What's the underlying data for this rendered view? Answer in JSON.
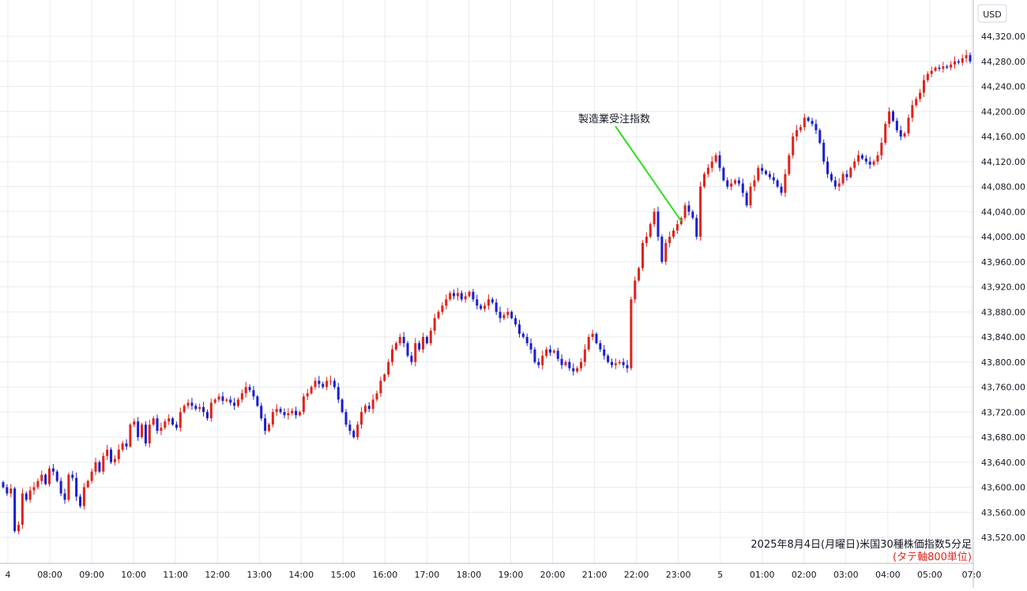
{
  "chart_data": {
    "type": "candlestick",
    "currency": "USD",
    "caption": "2025年8月4日(月曜日)米国30種株価指数5分足",
    "subcaption": "(タテ軸800単位)",
    "ylim": [
      43500,
      44340
    ],
    "y_ticks": [
      "44,320.00",
      "44,280.00",
      "44,240.00",
      "44,200.00",
      "44,160.00",
      "44,120.00",
      "44,080.00",
      "44,040.00",
      "44,000.00",
      "43,960.00",
      "43,920.00",
      "43,880.00",
      "43,840.00",
      "43,800.00",
      "43,760.00",
      "43,720.00",
      "43,680.00",
      "43,640.00",
      "43,600.00",
      "43,560.00",
      "43,520.00"
    ],
    "y_tick_values": [
      44320,
      44280,
      44240,
      44200,
      44160,
      44120,
      44080,
      44040,
      44000,
      43960,
      43920,
      43880,
      43840,
      43800,
      43760,
      43720,
      43680,
      43640,
      43600,
      43560,
      43520
    ],
    "x_tick_labels": [
      "4",
      "08:00",
      "09:00",
      "10:00",
      "11:00",
      "12:00",
      "13:00",
      "14:00",
      "15:00",
      "16:00",
      "17:00",
      "18:00",
      "19:00",
      "20:00",
      "21:00",
      "22:00",
      "23:00",
      "5",
      "01:00",
      "02:00",
      "03:00",
      "04:00",
      "05:00",
      "07:0"
    ],
    "annotation": {
      "text": "製造業受注指数",
      "at_time_index": 176,
      "at_price": 44025
    },
    "colors": {
      "up": "#e0241b",
      "down": "#1a1fd1",
      "annotation_line": "#33dd22",
      "grid": "#e8ebf0"
    },
    "closes": [
      43600,
      43590,
      43598,
      43530,
      43540,
      43590,
      43580,
      43595,
      43600,
      43610,
      43620,
      43605,
      43630,
      43625,
      43610,
      43590,
      43580,
      43620,
      43615,
      43585,
      43570,
      43600,
      43610,
      43625,
      43640,
      43625,
      43650,
      43660,
      43640,
      43645,
      43660,
      43670,
      43665,
      43700,
      43705,
      43680,
      43700,
      43670,
      43700,
      43710,
      43690,
      43695,
      43705,
      43710,
      43700,
      43695,
      43720,
      43730,
      43735,
      43730,
      43725,
      43728,
      43720,
      43710,
      43735,
      43740,
      43745,
      43738,
      43740,
      43735,
      43730,
      43740,
      43750,
      43760,
      43755,
      43745,
      43730,
      43710,
      43690,
      43700,
      43720,
      43725,
      43720,
      43715,
      43718,
      43722,
      43715,
      43720,
      43745,
      43750,
      43760,
      43770,
      43765,
      43760,
      43770,
      43770,
      43760,
      43740,
      43720,
      43700,
      43690,
      43680,
      43700,
      43720,
      43730,
      43725,
      43740,
      43750,
      43770,
      43780,
      43800,
      43820,
      43830,
      43840,
      43830,
      43810,
      43800,
      43830,
      43820,
      43840,
      43830,
      43850,
      43870,
      43880,
      43890,
      43900,
      43910,
      43905,
      43910,
      43900,
      43905,
      43912,
      43900,
      43890,
      43885,
      43890,
      43900,
      43895,
      43880,
      43870,
      43875,
      43880,
      43870,
      43860,
      43845,
      43840,
      43830,
      43820,
      43800,
      43795,
      43810,
      43820,
      43815,
      43818,
      43805,
      43795,
      43800,
      43790,
      43785,
      43790,
      43800,
      43820,
      43840,
      43845,
      43830,
      43820,
      43810,
      43800,
      43795,
      43798,
      43800,
      43795,
      43790,
      43900,
      43930,
      43950,
      43990,
      44000,
      44020,
      44040,
      44000,
      43960,
      43990,
      44000,
      44010,
      44020,
      44030,
      44050,
      44040,
      44030,
      44000,
      44080,
      44100,
      44110,
      44120,
      44130,
      44110,
      44090,
      44080,
      44085,
      44090,
      44085,
      44070,
      44050,
      44080,
      44090,
      44110,
      44105,
      44100,
      44095,
      44090,
      44080,
      44070,
      44100,
      44130,
      44160,
      44170,
      44175,
      44190,
      44185,
      44180,
      44170,
      44150,
      44120,
      44100,
      44090,
      44080,
      44085,
      44100,
      44095,
      44110,
      44120,
      44130,
      44125,
      44120,
      44115,
      44120,
      44130,
      44150,
      44180,
      44200,
      44185,
      44170,
      44160,
      44165,
      44190,
      44210,
      44220,
      44230,
      44250,
      44260,
      44265,
      44270,
      44268,
      44272,
      44270,
      44275,
      44280,
      44278,
      44285,
      44290,
      44280
    ]
  }
}
